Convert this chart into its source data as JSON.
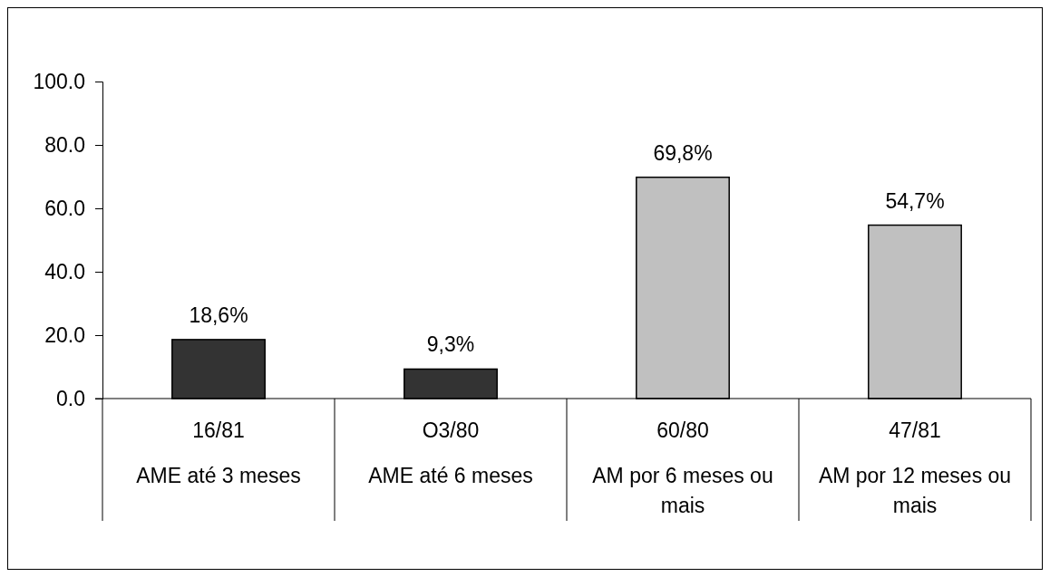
{
  "chart_data": {
    "type": "bar",
    "categories": [
      "16/81\nAME até 3 meses",
      "O3/80\nAME até 6 meses",
      "60/80\nAM por 6 meses ou mais",
      "47/81\nAM por 12 meses ou mais"
    ],
    "values": [
      18.6,
      9.3,
      69.8,
      54.7
    ],
    "colors": [
      "#333333",
      "#333333",
      "#c0c0c0",
      "#c0c0c0"
    ],
    "value_labels": [
      "18,6%",
      "9,3%",
      "69,8%",
      "54,7%"
    ],
    "ylim": [
      0,
      100
    ],
    "yticks": [
      {
        "value": 0,
        "label": "0.0"
      },
      {
        "value": 20,
        "label": "20.0"
      },
      {
        "value": 40,
        "label": "40.0"
      },
      {
        "value": 60,
        "label": "60.0"
      },
      {
        "value": 80,
        "label": "80.0"
      },
      {
        "value": 100,
        "label": "100.0"
      }
    ],
    "grid": false
  }
}
